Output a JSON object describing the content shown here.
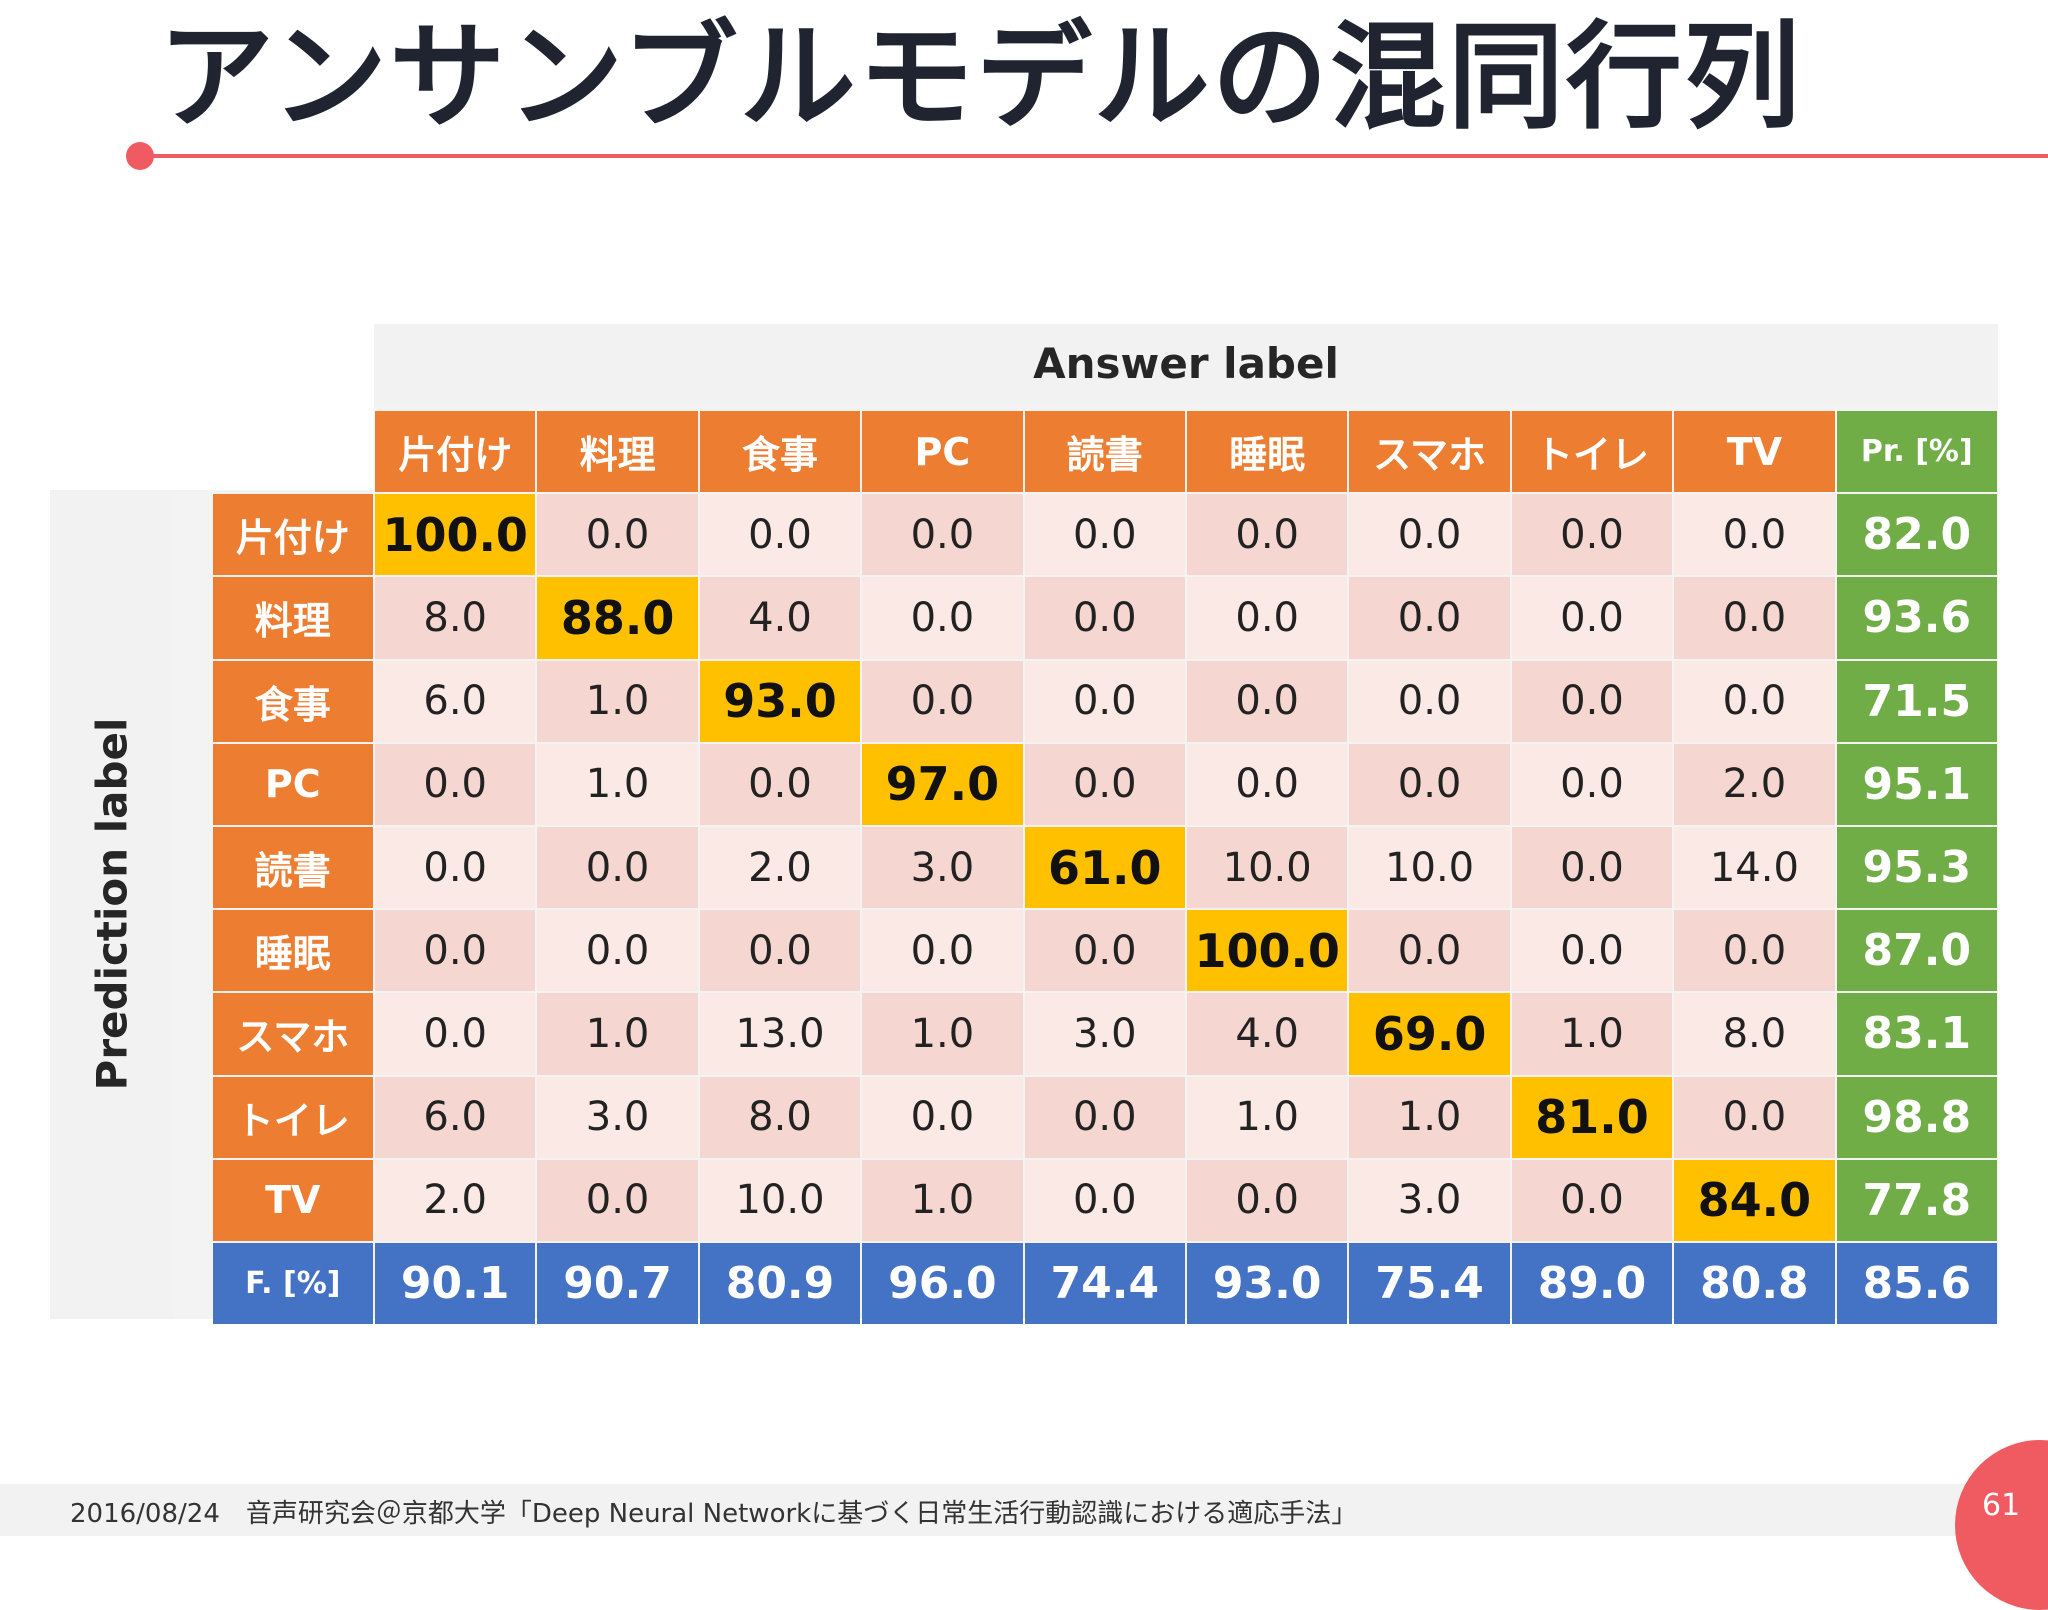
{
  "slide": {
    "title": "アンサンブルモデルの混同行列",
    "footer": "2016/08/24　音声研究会＠京都大学「Deep Neural Networkに基づく日常生活行動認識における適応手法」",
    "page_number": "61"
  },
  "colors": {
    "header": "#ec7d31",
    "precision": "#70ad47",
    "fmeasure": "#4472c4",
    "diagonal": "#ffc000",
    "accent": "#ef5b60"
  },
  "matrix": {
    "answer_axis_label": "Answer label",
    "prediction_axis_label": "Prediction label",
    "columns": [
      "片付け",
      "料理",
      "食事",
      "PC",
      "読書",
      "睡眠",
      "スマホ",
      "トイレ",
      "TV"
    ],
    "precision_header": "Pr. [%]",
    "f_header": "F. [%]",
    "rows": [
      {
        "label": "片付け",
        "values": [
          "100.0",
          "0.0",
          "0.0",
          "0.0",
          "0.0",
          "0.0",
          "0.0",
          "0.0",
          "0.0"
        ],
        "pr": "82.0"
      },
      {
        "label": "料理",
        "values": [
          "8.0",
          "88.0",
          "4.0",
          "0.0",
          "0.0",
          "0.0",
          "0.0",
          "0.0",
          "0.0"
        ],
        "pr": "93.6"
      },
      {
        "label": "食事",
        "values": [
          "6.0",
          "1.0",
          "93.0",
          "0.0",
          "0.0",
          "0.0",
          "0.0",
          "0.0",
          "0.0"
        ],
        "pr": "71.5"
      },
      {
        "label": "PC",
        "values": [
          "0.0",
          "1.0",
          "0.0",
          "97.0",
          "0.0",
          "0.0",
          "0.0",
          "0.0",
          "2.0"
        ],
        "pr": "95.1"
      },
      {
        "label": "読書",
        "values": [
          "0.0",
          "0.0",
          "2.0",
          "3.0",
          "61.0",
          "10.0",
          "10.0",
          "0.0",
          "14.0"
        ],
        "pr": "95.3"
      },
      {
        "label": "睡眠",
        "values": [
          "0.0",
          "0.0",
          "0.0",
          "0.0",
          "0.0",
          "100.0",
          "0.0",
          "0.0",
          "0.0"
        ],
        "pr": "87.0"
      },
      {
        "label": "スマホ",
        "values": [
          "0.0",
          "1.0",
          "13.0",
          "1.0",
          "3.0",
          "4.0",
          "69.0",
          "1.0",
          "8.0"
        ],
        "pr": "83.1"
      },
      {
        "label": "トイレ",
        "values": [
          "6.0",
          "3.0",
          "8.0",
          "0.0",
          "0.0",
          "1.0",
          "1.0",
          "81.0",
          "0.0"
        ],
        "pr": "98.8"
      },
      {
        "label": "TV",
        "values": [
          "2.0",
          "0.0",
          "10.0",
          "1.0",
          "0.0",
          "0.0",
          "3.0",
          "0.0",
          "84.0"
        ],
        "pr": "77.8"
      }
    ],
    "f_values": [
      "90.1",
      "90.7",
      "80.9",
      "96.0",
      "74.4",
      "93.0",
      "75.4",
      "89.0",
      "80.8"
    ],
    "f_overall": "85.6"
  }
}
